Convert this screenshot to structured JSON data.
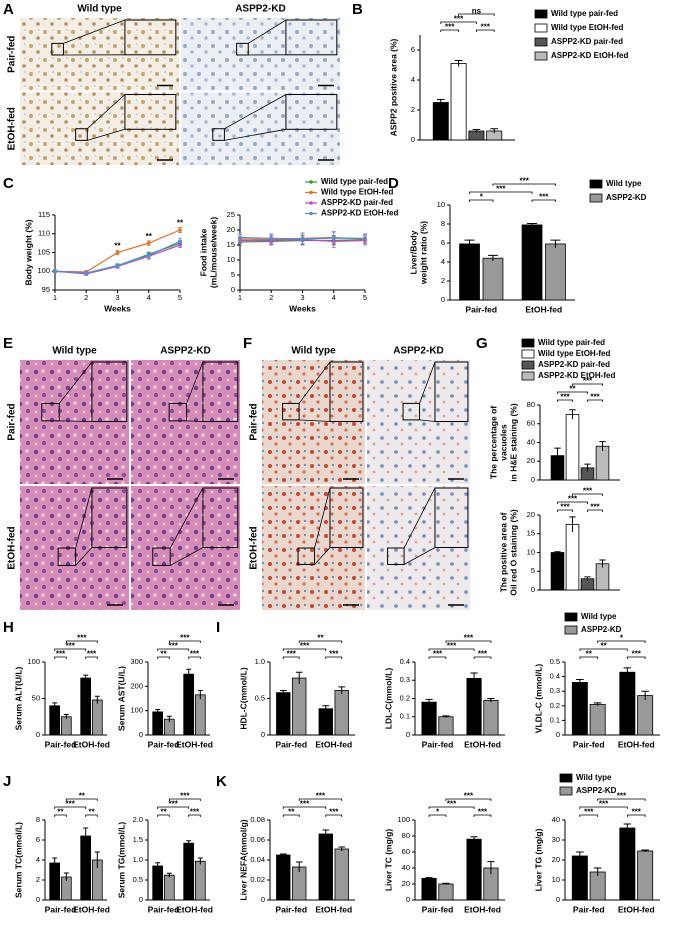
{
  "panel_labels": [
    "A",
    "B",
    "C",
    "D",
    "E",
    "F",
    "G",
    "H",
    "I",
    "J",
    "K"
  ],
  "images": [
    {
      "columns": [
        "Wild type",
        "ASPP2-KD"
      ],
      "rows": [
        "Pair-fed",
        "EtOH-fed"
      ]
    },
    {
      "columns": [
        "Wild type",
        "ASPP2-KD"
      ],
      "rows": [
        "Pair-fed",
        "EtOH-fed"
      ]
    },
    {
      "columns": [
        "Wild type",
        "ASPP2-KD"
      ],
      "rows": [
        "Pair-fed",
        "EtOH-fed"
      ]
    }
  ],
  "chart_data": [
    {
      "type": "bar",
      "ylabel": [
        "ASPP2 positive area (%)"
      ],
      "ylim": [
        0,
        7
      ],
      "yticks": [
        0,
        2,
        4,
        6
      ],
      "series": [
        {
          "name": "Wild type pair-fed",
          "color": "#000000",
          "values": [
            2.5
          ],
          "errors": [
            0.2
          ]
        },
        {
          "name": "Wild type EtOH-fed",
          "color": "#ffffff",
          "values": [
            5.1
          ],
          "errors": [
            0.2
          ]
        },
        {
          "name": "ASPP2-KD pair-fed",
          "color": "#555555",
          "values": [
            0.6
          ],
          "errors": [
            0.1
          ]
        },
        {
          "name": "ASPP2-KD EtOH-fed",
          "color": "#bbbbbb",
          "values": [
            0.6
          ],
          "errors": [
            0.15
          ]
        }
      ],
      "annotations": [
        "***",
        "***",
        "***",
        "ns"
      ]
    },
    {
      "type": "line",
      "ylabel": [
        "Body weight (%)"
      ],
      "xlabel": "Weeks",
      "x": [
        1,
        2,
        3,
        4,
        5
      ],
      "xlim": [
        1,
        5
      ],
      "xticks": [
        1,
        2,
        3,
        4,
        5
      ],
      "ylim": [
        95,
        115
      ],
      "yticks": [
        95,
        100,
        105,
        110,
        115
      ],
      "series": [
        {
          "name": "Wild type pair-fed",
          "color": "#2ca02c",
          "values": [
            100,
            99.5,
            101.5,
            104.5,
            107.5
          ],
          "errors": [
            0.3,
            0.4,
            0.5,
            0.6,
            0.6
          ]
        },
        {
          "name": "Wild type EtOH-fed",
          "color": "#e07020",
          "values": [
            100,
            99.8,
            105,
            107.5,
            111
          ],
          "errors": [
            0.3,
            0.4,
            0.6,
            0.6,
            0.7
          ]
        },
        {
          "name": "ASPP2-KD pair-fed",
          "color": "#d040d0",
          "values": [
            100,
            99.3,
            101.3,
            104,
            107
          ],
          "errors": [
            0.3,
            0.4,
            0.5,
            0.8,
            0.7
          ]
        },
        {
          "name": "ASPP2-KD EtOH-fed",
          "color": "#4a90d9",
          "values": [
            100,
            99.5,
            101.5,
            104.2,
            108
          ],
          "errors": [
            0.3,
            0.4,
            0.5,
            0.7,
            0.8
          ]
        }
      ],
      "annotations": [
        "**",
        "**",
        "**"
      ]
    },
    {
      "type": "line",
      "ylabel": [
        "Food intake",
        "(mL/mouse/week)"
      ],
      "xlabel": "Weeks",
      "x": [
        1,
        2,
        3,
        4,
        5
      ],
      "xlim": [
        1,
        5
      ],
      "xticks": [
        1,
        2,
        3,
        4,
        5
      ],
      "ylim": [
        0,
        25
      ],
      "yticks": [
        0,
        5,
        10,
        15,
        20,
        25
      ],
      "series": [
        {
          "color": "#2ca02c",
          "values": [
            16,
            16.2,
            16.5,
            16.5,
            16.8
          ],
          "errors": [
            1.2,
            1.2,
            1.5,
            1.5,
            1.2
          ]
        },
        {
          "color": "#e07020",
          "values": [
            17,
            16.8,
            17.2,
            17.5,
            17
          ],
          "errors": [
            1.5,
            1.5,
            1.8,
            2,
            1.5
          ]
        },
        {
          "color": "#d040d0",
          "values": [
            16.5,
            16.5,
            16.8,
            16.2,
            16.5
          ],
          "errors": [
            1.2,
            1.5,
            1.5,
            2,
            1.5
          ]
        },
        {
          "color": "#4a90d9",
          "values": [
            17.5,
            17.2,
            17,
            17.3,
            17.2
          ],
          "errors": [
            1.5,
            1.5,
            2,
            2,
            1.5
          ]
        }
      ]
    },
    {
      "type": "bar",
      "ylabel": [
        "Liver/Body",
        "weight ratio (%)"
      ],
      "categories": [
        "Pair-fed",
        "EtOH-fed"
      ],
      "ylim": [
        0,
        10
      ],
      "yticks": [
        0,
        2,
        4,
        6,
        8,
        10
      ],
      "series": [
        {
          "name": "Wild type",
          "color": "#000000",
          "values": [
            5.9,
            7.9
          ],
          "errors": [
            0.4,
            0.15
          ]
        },
        {
          "name": "ASPP2-KD",
          "color": "#999999",
          "values": [
            4.4,
            5.9
          ],
          "errors": [
            0.3,
            0.4
          ]
        }
      ],
      "annotations": [
        "*",
        "***",
        "***",
        "***"
      ]
    },
    {
      "type": "bar",
      "ylabel": [
        "The percentage of",
        "vacuoles",
        "in H&E staining (%)"
      ],
      "ylim": [
        0,
        80
      ],
      "yticks": [
        0,
        20,
        40,
        60,
        80
      ],
      "series": [
        {
          "name": "Wild type pair-fed",
          "color": "#000000",
          "values": [
            26
          ],
          "errors": [
            8
          ]
        },
        {
          "name": "Wild type EtOH-fed",
          "color": "#ffffff",
          "values": [
            70
          ],
          "errors": [
            5
          ]
        },
        {
          "name": "ASPP2-KD pair-fed",
          "color": "#555555",
          "values": [
            13
          ],
          "errors": [
            4
          ]
        },
        {
          "name": "ASPP2-KD EtOH-fed",
          "color": "#bbbbbb",
          "values": [
            36
          ],
          "errors": [
            5
          ]
        }
      ],
      "annotations": [
        "***",
        "***",
        "**",
        "***"
      ]
    },
    {
      "type": "bar",
      "ylabel": [
        "The positive area of",
        "Oil red O staining (%)"
      ],
      "ylim": [
        0,
        20
      ],
      "yticks": [
        0,
        5,
        10,
        15,
        20
      ],
      "series": [
        {
          "color": "#000000",
          "values": [
            10
          ],
          "errors": [
            0.2
          ]
        },
        {
          "color": "#ffffff",
          "values": [
            17.5
          ],
          "errors": [
            2
          ]
        },
        {
          "color": "#555555",
          "values": [
            3
          ],
          "errors": [
            0.5
          ]
        },
        {
          "color": "#bbbbbb",
          "values": [
            7
          ],
          "errors": [
            1
          ]
        }
      ],
      "annotations": [
        "***",
        "***",
        "***",
        "***"
      ]
    },
    {
      "type": "bar",
      "ylabel": [
        "Serum ALT(U/L)"
      ],
      "categories": [
        "Pair-fed",
        "EtOH-fed"
      ],
      "ylim": [
        0,
        100
      ],
      "yticks": [
        0,
        50,
        100
      ],
      "series": [
        {
          "color": "#000000",
          "values": [
            40,
            78
          ],
          "errors": [
            4,
            4
          ]
        },
        {
          "color": "#999999",
          "values": [
            25,
            48
          ],
          "errors": [
            3,
            5
          ]
        }
      ],
      "annotations": [
        "***",
        "***",
        "***",
        "***"
      ]
    },
    {
      "type": "bar",
      "ylabel": [
        "Serum AST(U/L)"
      ],
      "categories": [
        "Pair-fed",
        "EtOH-fed"
      ],
      "ylim": [
        0,
        300
      ],
      "yticks": [
        0,
        100,
        200,
        300
      ],
      "series": [
        {
          "color": "#000000",
          "values": [
            95,
            250
          ],
          "errors": [
            10,
            20
          ]
        },
        {
          "color": "#999999",
          "values": [
            65,
            165
          ],
          "errors": [
            12,
            18
          ]
        }
      ],
      "annotations": [
        "**",
        "***",
        "***",
        "***"
      ]
    },
    {
      "type": "bar",
      "ylabel": [
        "HDL-C(mmol/L)"
      ],
      "categories": [
        "Pair-fed",
        "EtOH-fed"
      ],
      "ylim": [
        0,
        1
      ],
      "yticks": [
        0,
        0.5,
        {
          "value": 1,
          "label": "1.0"
        }
      ],
      "series": [
        {
          "color": "#000000",
          "values": [
            0.58,
            0.36
          ],
          "errors": [
            0.03,
            0.04
          ]
        },
        {
          "color": "#999999",
          "values": [
            0.78,
            0.61
          ],
          "errors": [
            0.08,
            0.05
          ]
        }
      ],
      "annotations": [
        "***",
        "***",
        "***",
        "**"
      ]
    },
    {
      "type": "bar",
      "ylabel": [
        "LDL-C(mmol/L)"
      ],
      "categories": [
        "Pair-fed",
        "EtOH-fed"
      ],
      "ylim": [
        0,
        0.4
      ],
      "yticks": [
        0,
        0.1,
        0.2,
        0.3,
        0.4
      ],
      "series": [
        {
          "color": "#000000",
          "values": [
            0.18,
            0.31
          ],
          "errors": [
            0.015,
            0.03
          ]
        },
        {
          "color": "#999999",
          "values": [
            0.1,
            0.19
          ],
          "errors": [
            0.005,
            0.01
          ]
        }
      ],
      "annotations": [
        "***",
        "***",
        "***",
        "***"
      ]
    },
    {
      "type": "bar",
      "ylabel": [
        "VLDL-C (mmol/L)"
      ],
      "categories": [
        "Pair-fed",
        "EtOH-fed"
      ],
      "ylim": [
        0,
        0.5
      ],
      "yticks": [
        0,
        0.1,
        0.2,
        0.3,
        0.4,
        0.5
      ],
      "series": [
        {
          "name": "Wild type",
          "color": "#000000",
          "values": [
            0.36,
            0.43
          ],
          "errors": [
            0.02,
            0.03
          ]
        },
        {
          "name": "ASPP2-KD",
          "color": "#999999",
          "values": [
            0.21,
            0.27
          ],
          "errors": [
            0.01,
            0.03
          ]
        }
      ],
      "annotations": [
        "**",
        "***",
        "**",
        "*"
      ]
    },
    {
      "type": "bar",
      "ylabel": [
        "Serum TC(mmol/L)"
      ],
      "categories": [
        "Pair-fed",
        "EtOH-fed"
      ],
      "ylim": [
        0,
        8
      ],
      "yticks": [
        0,
        2,
        4,
        6,
        8
      ],
      "series": [
        {
          "color": "#000000",
          "values": [
            3.7,
            6.4
          ],
          "errors": [
            0.5,
            0.8
          ]
        },
        {
          "color": "#999999",
          "values": [
            2.3,
            4
          ],
          "errors": [
            0.4,
            0.8
          ]
        }
      ],
      "annotations": [
        "**",
        "**",
        "***",
        "**"
      ]
    },
    {
      "type": "bar",
      "ylabel": [
        "Serum TG(mmol/L)"
      ],
      "categories": [
        "Pair-fed",
        "EtOH-fed"
      ],
      "ylim": [
        0,
        2
      ],
      "yticks": [
        0,
        0.5,
        {
          "value": 1,
          "label": "1.0"
        },
        1.5,
        {
          "value": 2,
          "label": "2.0"
        }
      ],
      "series": [
        {
          "color": "#000000",
          "values": [
            0.85,
            1.42
          ],
          "errors": [
            0.08,
            0.06
          ]
        },
        {
          "color": "#999999",
          "values": [
            0.62,
            0.97
          ],
          "errors": [
            0.05,
            0.08
          ]
        }
      ],
      "annotations": [
        "**",
        "***",
        "***",
        "***"
      ]
    },
    {
      "type": "bar",
      "ylabel": [
        "Liver NEFA(mmol/g)"
      ],
      "categories": [
        "Pair-fed",
        "EtOH-fed"
      ],
      "ylim": [
        0,
        0.08
      ],
      "yticks": [
        0,
        0.02,
        0.04,
        0.06,
        0.08
      ],
      "series": [
        {
          "color": "#000000",
          "values": [
            0.045,
            0.066
          ],
          "errors": [
            0.001,
            0.004
          ]
        },
        {
          "color": "#999999",
          "values": [
            0.033,
            0.051
          ],
          "errors": [
            0.005,
            0.002
          ]
        }
      ],
      "annotations": [
        "**",
        "***",
        "***",
        "***"
      ]
    },
    {
      "type": "bar",
      "ylabel": [
        "Liver TC (mg/g)"
      ],
      "categories": [
        "Pair-fed",
        "EtOH-fed"
      ],
      "ylim": [
        0,
        100
      ],
      "yticks": [
        0,
        20,
        40,
        60,
        80,
        100
      ],
      "series": [
        {
          "color": "#000000",
          "values": [
            27,
            76
          ],
          "errors": [
            1,
            3
          ]
        },
        {
          "color": "#999999",
          "values": [
            20,
            40
          ],
          "errors": [
            1,
            8
          ]
        }
      ],
      "annotations": [
        "*",
        "***",
        "***",
        "***"
      ]
    },
    {
      "type": "bar",
      "ylabel": [
        "Liver TG (mg/g)"
      ],
      "categories": [
        "Pair-fed",
        "EtOH-fed"
      ],
      "ylim": [
        0,
        40
      ],
      "yticks": [
        0,
        10,
        20,
        30,
        40
      ],
      "series": [
        {
          "name": "Wild type",
          "color": "#000000",
          "values": [
            22,
            36
          ],
          "errors": [
            2,
            2
          ]
        },
        {
          "name": "ASPP2-KD",
          "color": "#999999",
          "values": [
            14,
            24.5
          ],
          "errors": [
            2,
            0.5
          ]
        }
      ],
      "annotations": [
        "***",
        "***",
        "***",
        "***"
      ]
    }
  ]
}
